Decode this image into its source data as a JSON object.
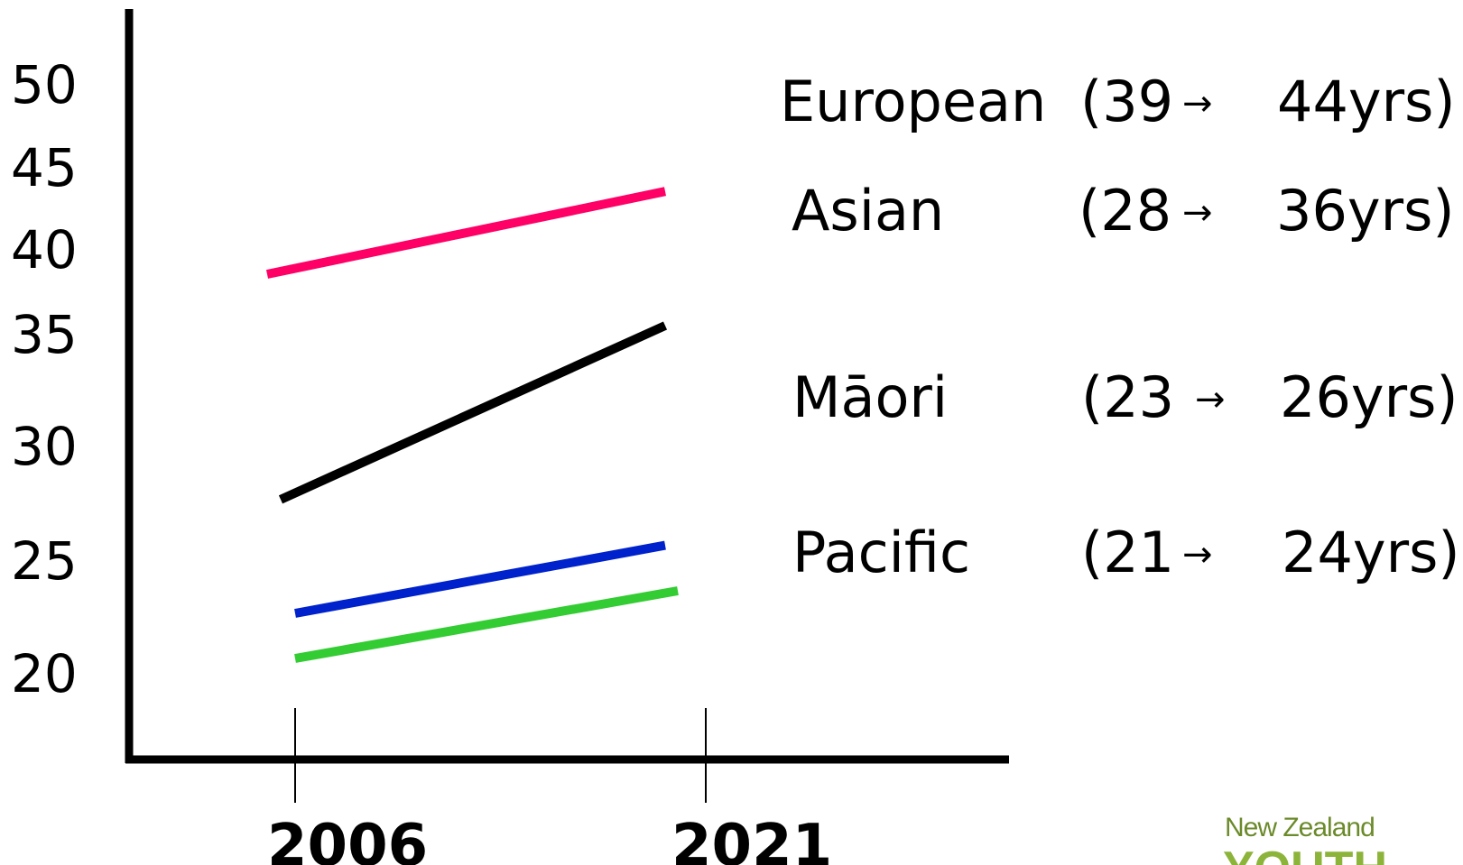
{
  "chart_data": {
    "type": "line",
    "x": [
      "2006",
      "2021"
    ],
    "ylim": [
      20,
      50
    ],
    "y_ticks": [
      "50",
      "45",
      "40",
      "35",
      "30",
      "25",
      "20"
    ],
    "series": [
      {
        "name": "European",
        "values": [
          39,
          44
        ],
        "color": "#ff0066",
        "from_label": "(39",
        "to_label": "44yrs)"
      },
      {
        "name": "Asian",
        "values": [
          28,
          36
        ],
        "color": "#000000",
        "from_label": "(28",
        "to_label": "36yrs)"
      },
      {
        "name": "Māori",
        "values": [
          23,
          26
        ],
        "color": "#0022cc",
        "from_label": "(23",
        "to_label": "26yrs)"
      },
      {
        "name": "Pacific",
        "values": [
          21,
          24
        ],
        "color": "#33cc33",
        "from_label": "(21",
        "to_label": "24yrs)"
      }
    ],
    "legend_arrow": "→",
    "legend_position": "right",
    "grid": false
  },
  "logo": {
    "line1": "New Zealand",
    "line2": "YOUTH"
  }
}
